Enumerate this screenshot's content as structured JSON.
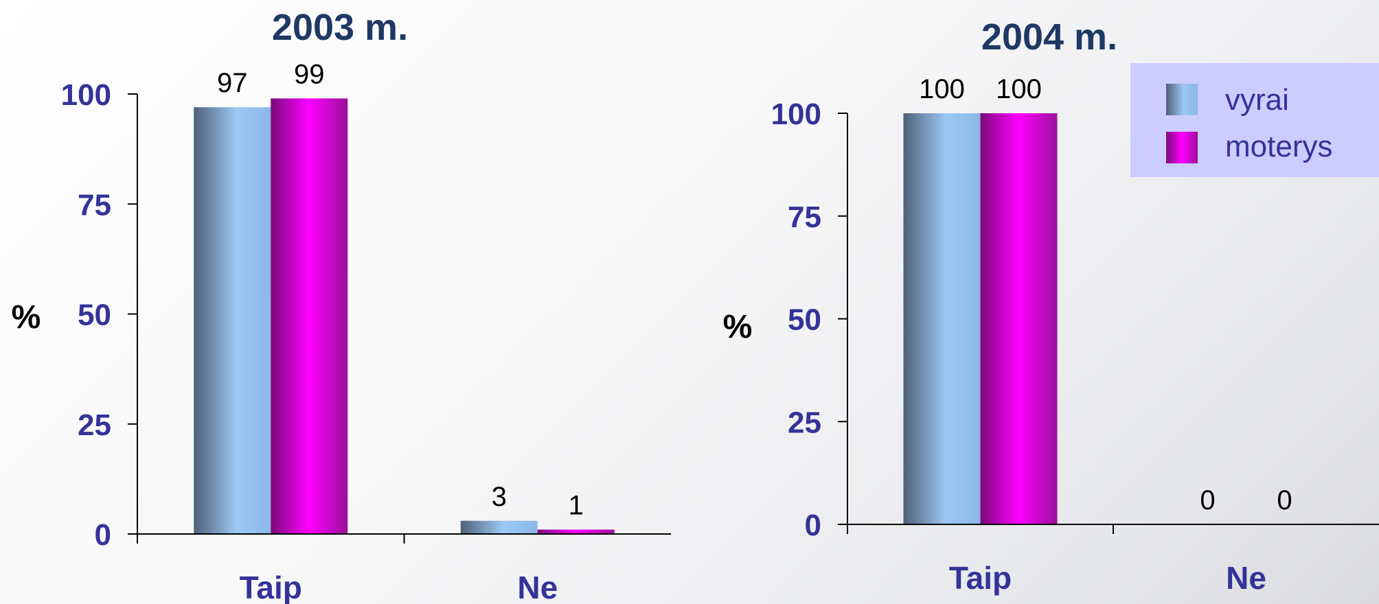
{
  "chart_data": [
    {
      "type": "bar",
      "title": "2003 m.",
      "ylabel": "%",
      "categories": [
        "Taip",
        "Ne"
      ],
      "ylim": [
        0,
        100
      ],
      "yticks": [
        "0",
        "25",
        "50",
        "75",
        "100"
      ],
      "series": [
        {
          "name": "vyrai",
          "values": [
            97,
            3
          ],
          "labels": [
            "97",
            "3"
          ]
        },
        {
          "name": "moterys",
          "values": [
            99,
            1
          ],
          "labels": [
            "99",
            "1"
          ]
        }
      ]
    },
    {
      "type": "bar",
      "title": "2004 m.",
      "ylabel": "%",
      "categories": [
        "Taip",
        "Ne"
      ],
      "ylim": [
        0,
        100
      ],
      "yticks": [
        "0",
        "25",
        "50",
        "75",
        "100"
      ],
      "series": [
        {
          "name": "vyrai",
          "values": [
            100,
            0
          ],
          "labels": [
            "100",
            "0"
          ]
        },
        {
          "name": "moterys",
          "values": [
            100,
            0
          ],
          "labels": [
            "100",
            "0"
          ]
        }
      ]
    }
  ],
  "legend": {
    "placement": "top-right",
    "items": [
      {
        "label": "vyrai",
        "color": "#6c7fa6"
      },
      {
        "label": "moterys",
        "color": "#ff00ff"
      }
    ],
    "background": "#ccccff"
  },
  "colors": {
    "vyrai_dark": "#4f6079",
    "vyrai_light": "#9cc8f4",
    "moterys_dark": "#7a0a7a",
    "moterys_light": "#ff00ff",
    "tick_text": "#333399",
    "title_text": "#1f3864"
  }
}
